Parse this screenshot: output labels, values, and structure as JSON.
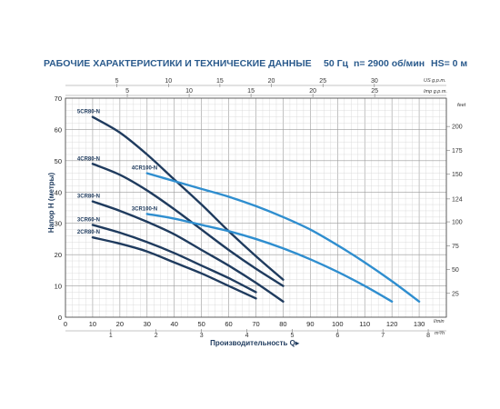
{
  "header": {
    "title": "РАБОЧИЕ ХАРАКТЕРИСТИКИ И ТЕХНИЧЕСКИЕ ДАННЫЕ",
    "freq": "50 Гц",
    "speed": "n= 2900 об/мин",
    "hs": "HS= 0 м"
  },
  "chart_data": {
    "type": "line",
    "xlabel": "Производительность Q",
    "ylabel": "Напор H (метры)",
    "x_unit_main": "l/min",
    "x_unit_m3h": "m³/h",
    "x_unit_usgpm": "US g.p.m.",
    "x_unit_impgpm": "Imp g.p.m.",
    "y_unit_feet": "feet",
    "xlim": [
      0,
      140
    ],
    "ylim": [
      0,
      70
    ],
    "x_ticks": [
      0,
      10,
      20,
      30,
      40,
      50,
      60,
      70,
      80,
      90,
      100,
      110,
      120,
      130
    ],
    "y_ticks": [
      0,
      10,
      20,
      30,
      40,
      50,
      60,
      70
    ],
    "m3h_ticks": [
      "1",
      "2",
      "3",
      "4",
      "5",
      "6",
      "7",
      "8"
    ],
    "usgpm_ticks": [
      "5",
      "10",
      "15",
      "20",
      "25",
      "30"
    ],
    "impgpm_ticks": [
      "5",
      "10",
      "15",
      "20",
      "25"
    ],
    "feet_ticks": [
      "25",
      "50",
      "75",
      "100",
      "124",
      "150",
      "175",
      "200"
    ],
    "grid": true,
    "series": [
      {
        "name": "5CR80-N",
        "color": "#1f3b5e",
        "x": [
          10,
          20,
          30,
          40,
          50,
          60,
          70,
          80
        ],
        "y": [
          64,
          59,
          52,
          44,
          36,
          27.5,
          19.5,
          12
        ]
      },
      {
        "name": "4CR80-N",
        "color": "#1f3b5e",
        "x": [
          10,
          20,
          30,
          40,
          50,
          60,
          70,
          80
        ],
        "y": [
          49,
          45.5,
          40.5,
          34.5,
          28,
          21.5,
          15.5,
          10
        ]
      },
      {
        "name": "4CR100-N",
        "color": "#2f8ecf",
        "x": [
          30,
          40,
          50,
          60,
          70,
          80,
          90,
          100,
          110,
          120,
          130
        ],
        "y": [
          46,
          43.5,
          41,
          38.5,
          35.5,
          32,
          28,
          23,
          17.5,
          11.5,
          5
        ]
      },
      {
        "name": "3CR80-N",
        "color": "#1f3b5e",
        "x": [
          10,
          20,
          30,
          40,
          50,
          60,
          70,
          80
        ],
        "y": [
          37,
          34,
          30.5,
          26.5,
          21.5,
          16.5,
          11,
          5
        ]
      },
      {
        "name": "3CR100-N",
        "color": "#2f8ecf",
        "x": [
          30,
          40,
          50,
          60,
          70,
          80,
          90,
          100,
          110,
          120
        ],
        "y": [
          33,
          31.5,
          29.5,
          27.5,
          25,
          22,
          18.5,
          14.5,
          10,
          5
        ]
      },
      {
        "name": "3CR60-N",
        "color": "#1f3b5e",
        "x": [
          10,
          20,
          30,
          40,
          50,
          60,
          70
        ],
        "y": [
          29.5,
          27,
          24,
          20.5,
          16.5,
          12.5,
          8
        ]
      },
      {
        "name": "2CR80-N",
        "color": "#1f3b5e",
        "x": [
          10,
          20,
          30,
          40,
          50,
          60,
          70
        ],
        "y": [
          25.5,
          23.5,
          21,
          17.5,
          14,
          10,
          6
        ]
      }
    ]
  }
}
